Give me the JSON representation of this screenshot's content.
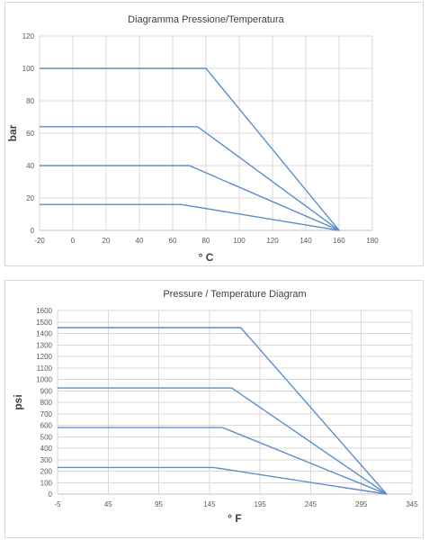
{
  "chart_data": [
    {
      "type": "line",
      "title": "Diagramma Pressione/Temperatura",
      "xlabel": "° C",
      "ylabel": "bar",
      "xlim": [
        -20,
        180
      ],
      "ylim": [
        0,
        120
      ],
      "xticks": [
        -20,
        0,
        20,
        40,
        60,
        80,
        100,
        120,
        140,
        160,
        180
      ],
      "yticks": [
        0,
        20,
        40,
        60,
        80,
        100,
        120
      ],
      "grid": true,
      "series": [
        {
          "x": [
            -20,
            80,
            160
          ],
          "y": [
            100,
            100,
            0
          ]
        },
        {
          "x": [
            -20,
            75,
            160
          ],
          "y": [
            64,
            64,
            0
          ]
        },
        {
          "x": [
            -20,
            70,
            160
          ],
          "y": [
            40,
            40,
            0
          ]
        },
        {
          "x": [
            -20,
            65,
            160
          ],
          "y": [
            16,
            16,
            0
          ]
        }
      ]
    },
    {
      "type": "line",
      "title": "Pressure / Temperature Diagram",
      "xlabel": "° F",
      "ylabel": "psi",
      "xlim": [
        -5,
        345
      ],
      "ylim": [
        0,
        1600
      ],
      "xticks": [
        -5,
        45,
        95,
        145,
        195,
        245,
        295,
        345
      ],
      "yticks": [
        0,
        100,
        200,
        300,
        400,
        500,
        600,
        700,
        800,
        900,
        1000,
        1100,
        1200,
        1300,
        1400,
        1500,
        1600
      ],
      "grid": true,
      "series": [
        {
          "x": [
            -5,
            176,
            320
          ],
          "y": [
            1450,
            1450,
            0
          ]
        },
        {
          "x": [
            -5,
            167,
            320
          ],
          "y": [
            925,
            925,
            0
          ]
        },
        {
          "x": [
            -5,
            158,
            320
          ],
          "y": [
            580,
            580,
            0
          ]
        },
        {
          "x": [
            -5,
            149,
            320
          ],
          "y": [
            232,
            232,
            0
          ]
        }
      ]
    }
  ]
}
